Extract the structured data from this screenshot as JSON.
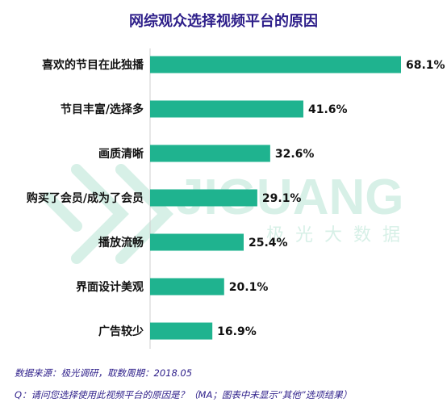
{
  "chart_data": {
    "type": "bar",
    "orientation": "horizontal",
    "title": "网综观众选择视频平台的原因",
    "categories": [
      "喜欢的节目在此独播",
      "节目丰富/选择多",
      "画质清晰",
      "购买了会员/成为了会员",
      "播放流畅",
      "界面设计美观",
      "广告较少"
    ],
    "values": [
      68.1,
      41.6,
      32.6,
      29.1,
      25.4,
      20.1,
      16.9
    ],
    "value_labels": [
      "68.1%",
      "41.6%",
      "32.6%",
      "29.1%",
      "25.4%",
      "20.1%",
      "16.9%"
    ],
    "xlim": [
      0,
      70
    ],
    "grid": false,
    "bar_color": "#1fb38f",
    "xlabel": "",
    "ylabel": ""
  },
  "watermark": {
    "text": "JIGUANG",
    "subtext": "极光大数据",
    "color": "#d7f0e7"
  },
  "footer": {
    "source": "数据来源：极光调研，取数周期：2018.05",
    "question": "Q：请问您选择使用此视频平台的原因是？（MA；图表中未显示“其他”选项结果）"
  }
}
